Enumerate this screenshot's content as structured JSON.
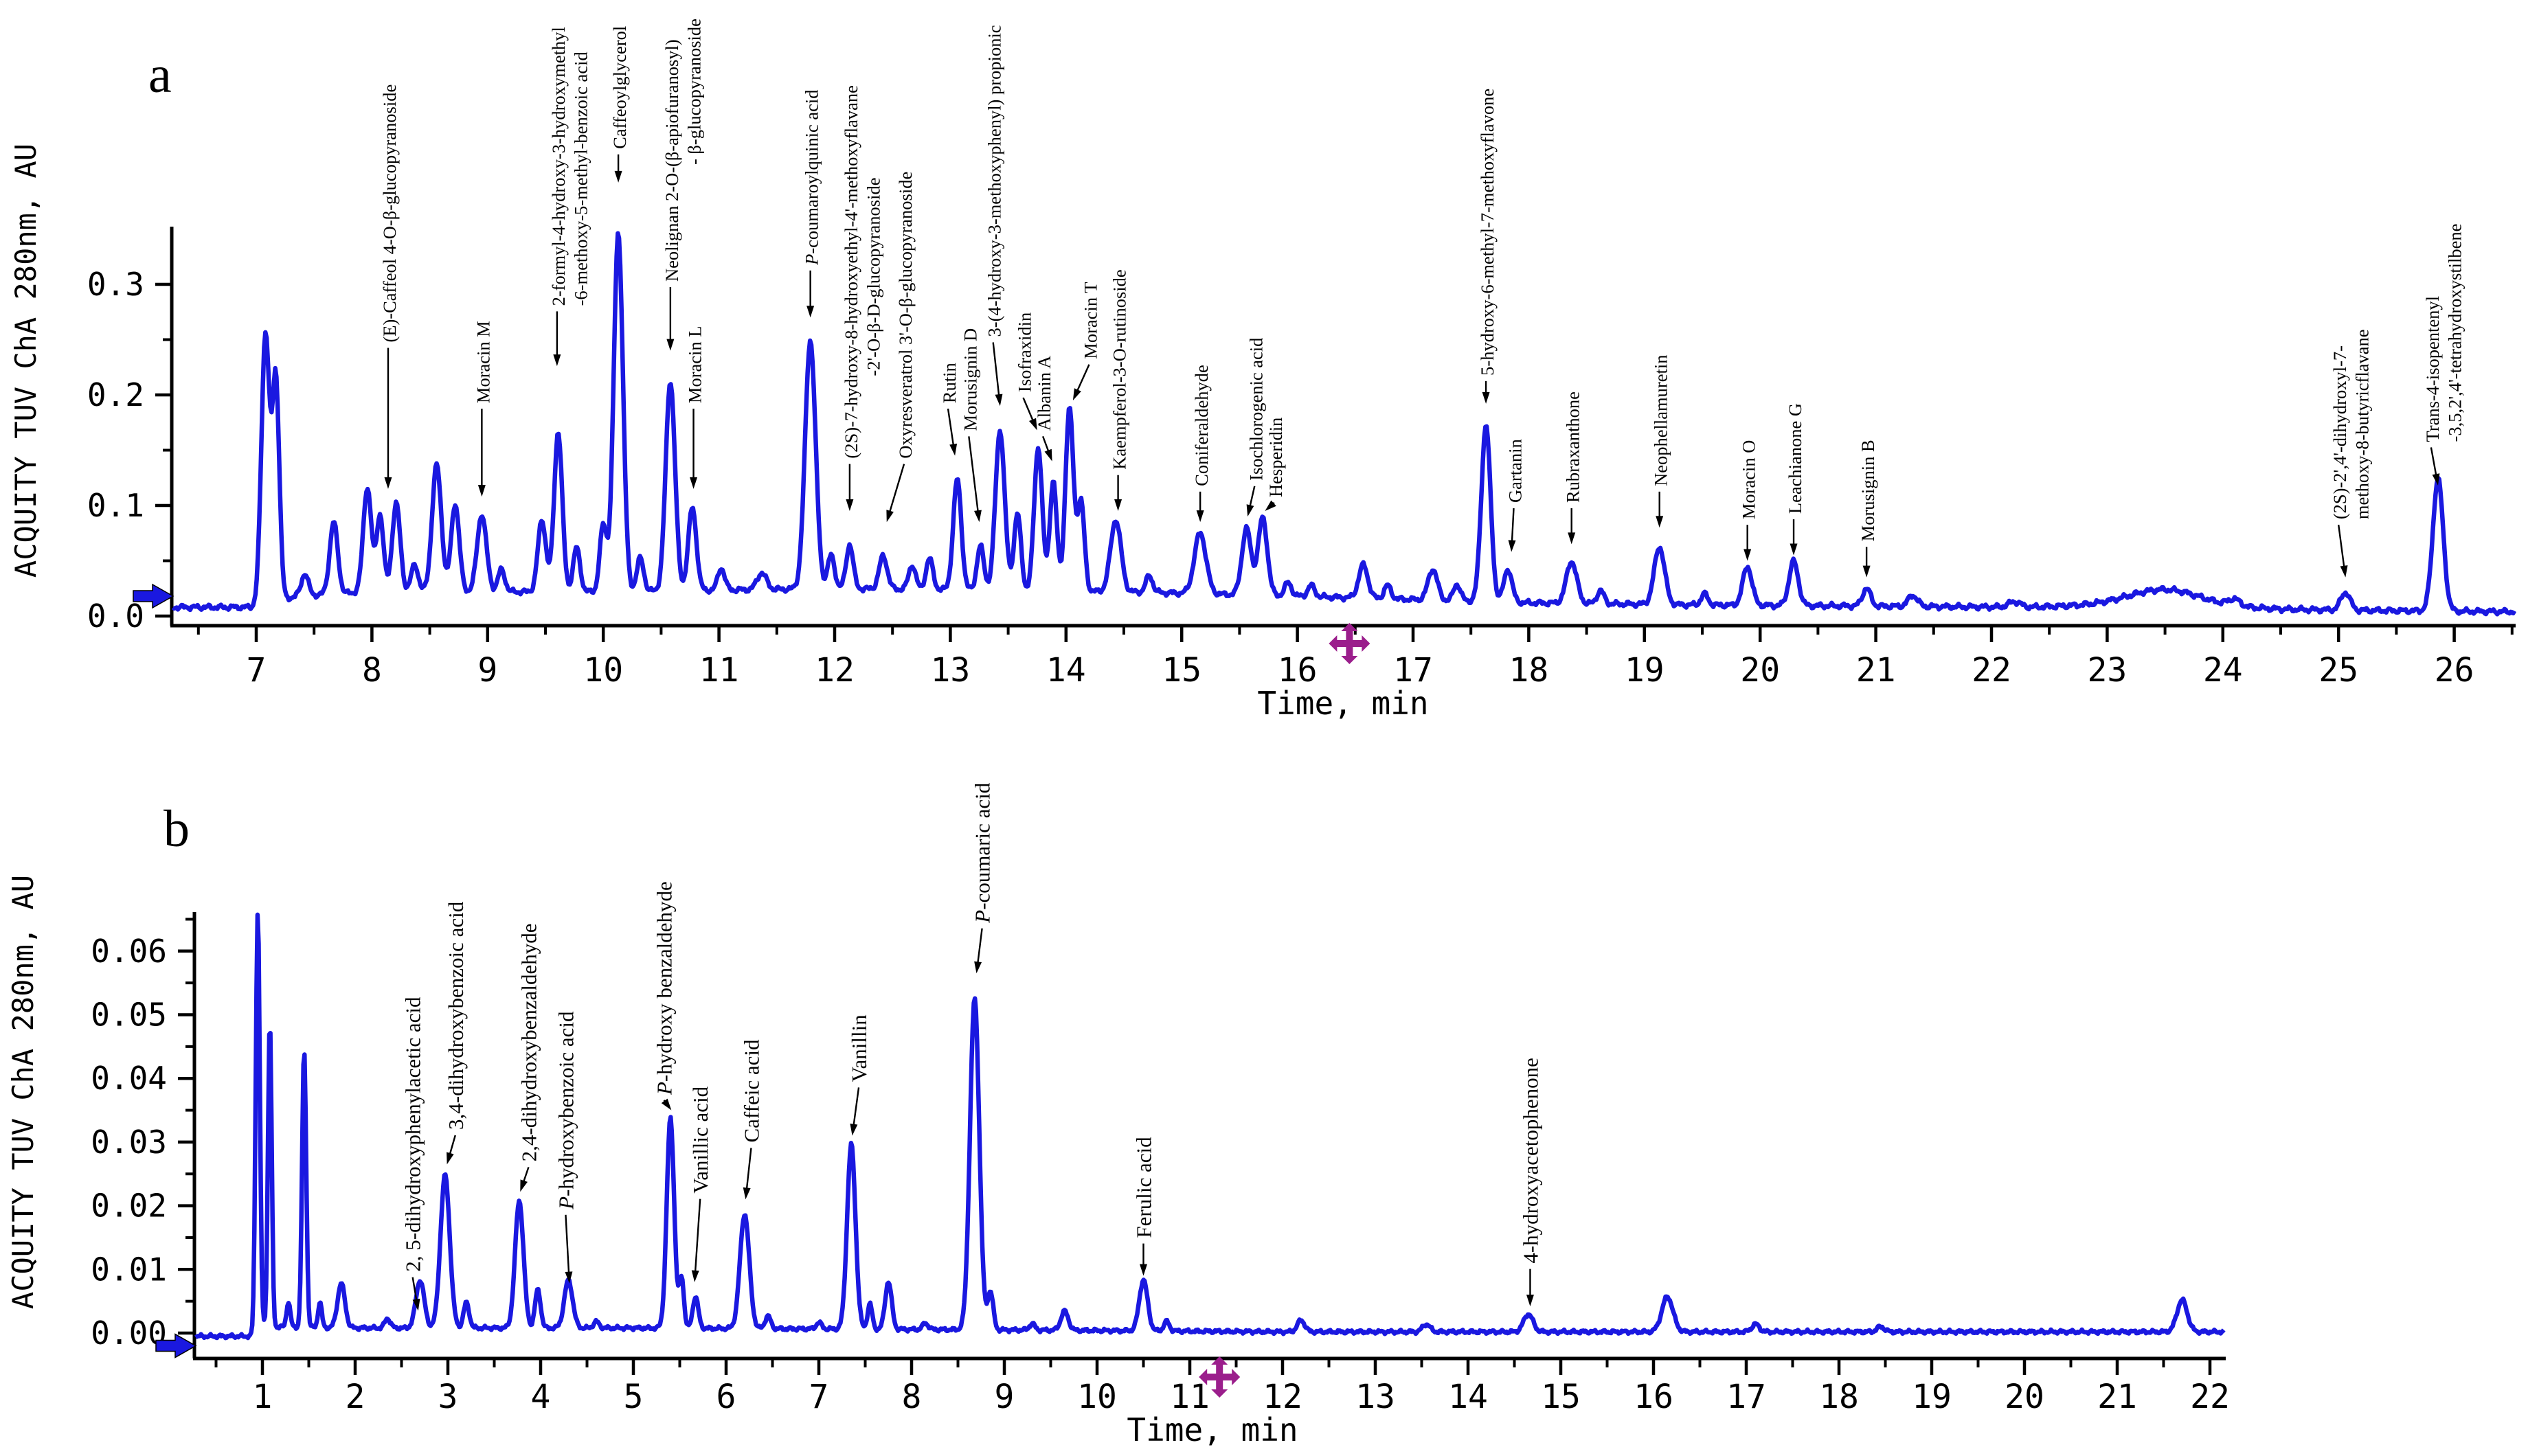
{
  "figure": {
    "panel_a_letter": "a",
    "panel_b_letter": "b",
    "y_axis_title": "ACQUITY TUV ChA 280nm, AU",
    "x_axis_title": "Time, min",
    "trace_color": "#1a18e0",
    "cursor_color": "#9b1e8c",
    "axis_color": "#000000",
    "icons": {
      "cursor": "move-cursor-icon",
      "baseline_marker": "right-arrow-icon"
    }
  },
  "chart_data": [
    {
      "type": "line",
      "panel": "a",
      "title": "",
      "xlabel": "Time, min",
      "ylabel": "ACQUITY TUV ChA 280nm, AU",
      "xlim": [
        6.28,
        26.52
      ],
      "ylim": [
        0,
        0.352
      ],
      "clip_au": 0.349,
      "x_ticks": [
        7,
        8,
        9,
        10,
        11,
        12,
        13,
        14,
        15,
        16,
        17,
        18,
        19,
        20,
        21,
        22,
        23,
        24,
        25,
        26
      ],
      "y_ticks": [
        {
          "v": 0.0,
          "label": "0.0"
        },
        {
          "v": 0.1,
          "label": "0.1"
        },
        {
          "v": 0.2,
          "label": "0.2"
        },
        {
          "v": 0.3,
          "label": "0.3"
        }
      ],
      "y_minor_ticks": [
        0.05,
        0.15,
        0.25
      ],
      "grid": false,
      "legend": null,
      "cursor_time_min": 16.45,
      "baseline_marker_au": 0.018,
      "noise_amp": 0.0028,
      "baseline": [
        [
          6.28,
          0.008
        ],
        [
          6.95,
          0.008
        ],
        [
          7.35,
          0.018
        ],
        [
          8.0,
          0.022
        ],
        [
          10.0,
          0.022
        ],
        [
          12.0,
          0.025
        ],
        [
          14.5,
          0.022
        ],
        [
          16.0,
          0.018
        ],
        [
          17.0,
          0.015
        ],
        [
          18.0,
          0.012
        ],
        [
          19.5,
          0.01
        ],
        [
          21.0,
          0.009
        ],
        [
          22.3,
          0.008
        ],
        [
          23.0,
          0.01
        ],
        [
          24.0,
          0.008
        ],
        [
          24.6,
          0.006
        ],
        [
          25.4,
          0.005
        ],
        [
          26.45,
          0.004
        ]
      ],
      "labeled_peaks": [
        {
          "name": "(E)-Caffeol 4-O-β-glucopyranoside",
          "t": 8.21,
          "h": 0.08,
          "s": 0.035,
          "lt": 8.14,
          "lau": 0.245,
          "tt": 8.14,
          "tau": 0.115
        },
        {
          "name": "Moracin M",
          "t": 8.95,
          "h": 0.07,
          "s": 0.04,
          "lt": 8.95,
          "lau": 0.19,
          "tt": 8.95,
          "tau": 0.108
        },
        {
          "name": "2-formyl-4-hydroxy-3-hydroxymethyl",
          "name2": "-6-methoxy-5-methyl-benzoic acid",
          "dy2": 0,
          "t": 9.61,
          "h": 0.145,
          "s": 0.035,
          "lt": 9.6,
          "lau": 0.278,
          "tt": 9.6,
          "tau": 0.226
        },
        {
          "name": "Caffeoylglycerol",
          "t": 10.13,
          "h": 0.325,
          "s": 0.04,
          "lt": 10.13,
          "lau": 0.42,
          "tt": 10.13,
          "tau": 0.392
        },
        {
          "name": "Neolignan 2-O-(β-apiofuranosyl)",
          "name2": "- β-glucopyranoside",
          "dy2": 170,
          "t": 10.58,
          "h": 0.19,
          "s": 0.04,
          "lt": 10.58,
          "lau": 0.3,
          "tt": 10.58,
          "tau": 0.24
        },
        {
          "name": "Moracin L",
          "t": 10.77,
          "h": 0.075,
          "s": 0.035,
          "lt": 10.78,
          "lau": 0.19,
          "tt": 10.78,
          "tau": 0.115
        },
        {
          "name": "P-coumaroylquinic acid",
          "ip": true,
          "t": 11.79,
          "h": 0.225,
          "s": 0.045,
          "lt": 11.79,
          "lau": 0.315,
          "tt": 11.79,
          "tau": 0.27
        },
        {
          "name": "(2S)-7-hydroxy-8-hydroxyethyl-4'-methoxyflavane",
          "name2": "-2'-O-β-D-glucopyranoside",
          "dy2": 120,
          "t": 12.13,
          "h": 0.04,
          "s": 0.03,
          "lt": 12.13,
          "lau": 0.14,
          "tt": 12.13,
          "tau": 0.095
        },
        {
          "name": "Oxyresveratrol 3'-O-β-glucopyranoside",
          "t": 12.42,
          "h": 0.03,
          "s": 0.035,
          "lt": 12.6,
          "lau": 0.14,
          "tt": 12.45,
          "tau": 0.085
        },
        {
          "name": "Rutin",
          "t": 13.06,
          "h": 0.1,
          "s": 0.035,
          "lt": 12.98,
          "lau": 0.19,
          "tt": 13.04,
          "tau": 0.145
        },
        {
          "name": "Morusignin D",
          "t": 13.26,
          "h": 0.04,
          "s": 0.03,
          "lt": 13.16,
          "lau": 0.165,
          "tt": 13.25,
          "tau": 0.085
        },
        {
          "name": "3-(4-hydroxy-3-methoxyphenyl) propionic",
          "t": 13.43,
          "h": 0.145,
          "s": 0.04,
          "lt": 13.37,
          "lau": 0.25,
          "tt": 13.43,
          "tau": 0.19
        },
        {
          "name": "Isofraxidin",
          "t": 13.76,
          "h": 0.13,
          "s": 0.035,
          "lt": 13.63,
          "lau": 0.2,
          "tt": 13.75,
          "tau": 0.168
        },
        {
          "name": "Albanin A",
          "t": 13.89,
          "h": 0.1,
          "s": 0.03,
          "lt": 13.8,
          "lau": 0.165,
          "tt": 13.88,
          "tau": 0.14
        },
        {
          "name": "Moracin T",
          "t": 14.03,
          "h": 0.165,
          "s": 0.035,
          "lt": 14.2,
          "lau": 0.23,
          "tt": 14.06,
          "tau": 0.195
        },
        {
          "name": "Kaempferol-3-O-rutinoside",
          "t": 14.43,
          "h": 0.065,
          "s": 0.045,
          "lt": 14.45,
          "lau": 0.13,
          "tt": 14.45,
          "tau": 0.095
        },
        {
          "name": "Coniferaldehyde",
          "t": 15.16,
          "h": 0.055,
          "s": 0.05,
          "lt": 15.16,
          "lau": 0.115,
          "tt": 15.16,
          "tau": 0.085
        },
        {
          "name": "Isochlorogenic acid",
          "t": 15.56,
          "h": 0.06,
          "s": 0.04,
          "lt": 15.63,
          "lau": 0.12,
          "tt": 15.57,
          "tau": 0.09
        },
        {
          "name": "Hesperidin",
          "t": 15.7,
          "h": 0.07,
          "s": 0.04,
          "lt": 15.8,
          "lau": 0.105,
          "tt": 15.72,
          "tau": 0.095
        },
        {
          "name": "5-hydroxy-6-methyl-7-methoxyflavone",
          "t": 17.63,
          "h": 0.16,
          "s": 0.04,
          "lt": 17.63,
          "lau": 0.215,
          "tt": 17.63,
          "tau": 0.192
        },
        {
          "name": "Gartanin",
          "t": 17.82,
          "h": 0.03,
          "s": 0.035,
          "lt": 17.87,
          "lau": 0.1,
          "tt": 17.85,
          "tau": 0.058
        },
        {
          "name": "Rubraxanthone",
          "t": 18.37,
          "h": 0.038,
          "s": 0.045,
          "lt": 18.37,
          "lau": 0.1,
          "tt": 18.37,
          "tau": 0.065
        },
        {
          "name": "Neophellamuretin",
          "t": 19.13,
          "h": 0.052,
          "s": 0.045,
          "lt": 19.13,
          "lau": 0.115,
          "tt": 19.13,
          "tau": 0.08
        },
        {
          "name": "Moracin O",
          "t": 19.89,
          "h": 0.035,
          "s": 0.04,
          "lt": 19.89,
          "lau": 0.085,
          "tt": 19.89,
          "tau": 0.05
        },
        {
          "name": "Leachianone G",
          "t": 20.29,
          "h": 0.04,
          "s": 0.04,
          "lt": 20.29,
          "lau": 0.09,
          "tt": 20.29,
          "tau": 0.055
        },
        {
          "name": "Morusignin B",
          "t": 20.92,
          "h": 0.016,
          "s": 0.035,
          "lt": 20.92,
          "lau": 0.065,
          "tt": 20.92,
          "tau": 0.035
        },
        {
          "name": "(2S)-2',4'-dihydroxyl-7-",
          "name2": "methoxy-8-butyricflavane",
          "dy2": 0,
          "t": 25.06,
          "h": 0.016,
          "s": 0.04,
          "lt": 25.0,
          "lau": 0.085,
          "tt": 25.06,
          "tau": 0.035
        },
        {
          "name": "Trans-4-isopentenyl",
          "name2": "-3,5,2',4'-tetrahydroxystilbene",
          "dy2": 0,
          "t": 25.86,
          "h": 0.12,
          "s": 0.045,
          "lt": 25.8,
          "lau": 0.155,
          "tt": 25.86,
          "tau": 0.118
        }
      ],
      "minor_peaks": [
        [
          7.08,
          0.245,
          0.035
        ],
        [
          7.17,
          0.2,
          0.03
        ],
        [
          7.42,
          0.02,
          0.03
        ],
        [
          7.67,
          0.065,
          0.035
        ],
        [
          7.96,
          0.095,
          0.035
        ],
        [
          8.07,
          0.07,
          0.03
        ],
        [
          8.37,
          0.025,
          0.03
        ],
        [
          8.56,
          0.115,
          0.04
        ],
        [
          8.72,
          0.08,
          0.035
        ],
        [
          9.12,
          0.02,
          0.03
        ],
        [
          9.47,
          0.065,
          0.035
        ],
        [
          9.77,
          0.04,
          0.03
        ],
        [
          10.0,
          0.06,
          0.03
        ],
        [
          10.32,
          0.03,
          0.03
        ],
        [
          11.02,
          0.02,
          0.03
        ],
        [
          11.37,
          0.015,
          0.04
        ],
        [
          11.97,
          0.03,
          0.03
        ],
        [
          12.67,
          0.022,
          0.03
        ],
        [
          12.82,
          0.028,
          0.03
        ],
        [
          13.58,
          0.07,
          0.03
        ],
        [
          14.13,
          0.08,
          0.03
        ],
        [
          14.72,
          0.015,
          0.03
        ],
        [
          15.92,
          0.012,
          0.03
        ],
        [
          16.12,
          0.01,
          0.03
        ],
        [
          16.57,
          0.03,
          0.04
        ],
        [
          16.78,
          0.012,
          0.03
        ],
        [
          17.17,
          0.028,
          0.04
        ],
        [
          17.38,
          0.015,
          0.03
        ],
        [
          18.62,
          0.012,
          0.03
        ],
        [
          19.52,
          0.01,
          0.03
        ],
        [
          21.32,
          0.01,
          0.04
        ],
        [
          22.2,
          0.005,
          0.05
        ],
        [
          23.5,
          0.015,
          0.3
        ],
        [
          24.1,
          0.006,
          0.05
        ]
      ]
    },
    {
      "type": "line",
      "panel": "b",
      "title": "",
      "xlabel": "Time, min",
      "ylabel": "ACQUITY TUV ChA 280nm, AU",
      "xlim": [
        0.28,
        22.15
      ],
      "ylim": [
        -0.004,
        0.0662
      ],
      "clip_au": 0.0663,
      "x_ticks": [
        1,
        2,
        3,
        4,
        5,
        6,
        7,
        8,
        9,
        10,
        11,
        12,
        13,
        14,
        15,
        16,
        17,
        18,
        19,
        20,
        21,
        22
      ],
      "y_ticks": [
        {
          "v": 0.0,
          "label": "0.00"
        },
        {
          "v": 0.01,
          "label": "0.01"
        },
        {
          "v": 0.02,
          "label": "0.02"
        },
        {
          "v": 0.03,
          "label": "0.03"
        },
        {
          "v": 0.04,
          "label": "0.04"
        },
        {
          "v": 0.05,
          "label": "0.05"
        },
        {
          "v": 0.06,
          "label": "0.06"
        }
      ],
      "y_minor_ticks": [
        0.005,
        0.015,
        0.025,
        0.035,
        0.045,
        0.055,
        0.065
      ],
      "grid": false,
      "legend": null,
      "cursor_time_min": 11.32,
      "baseline_marker_au": -0.002,
      "noise_amp": 0.00035,
      "baseline": [
        [
          0.28,
          -0.0005
        ],
        [
          0.88,
          -0.0005
        ],
        [
          1.0,
          0.001
        ],
        [
          2.0,
          0.0008
        ],
        [
          5.0,
          0.0008
        ],
        [
          9.0,
          0.0005
        ],
        [
          12.0,
          0.0002
        ],
        [
          22.15,
          0.0002
        ]
      ],
      "labeled_peaks": [
        {
          "name": "2, 5-dihydroxyphenylacetic acid",
          "t": 2.7,
          "h": 0.0075,
          "s": 0.045,
          "lt": 2.62,
          "lau": 0.0092,
          "tt": 2.68,
          "tau": 0.0035
        },
        {
          "name": "3,4-dihydroxybenzoic acid",
          "t": 2.97,
          "h": 0.024,
          "s": 0.05,
          "lt": 3.08,
          "lau": 0.0315,
          "tt": 2.99,
          "tau": 0.0265
        },
        {
          "name": "2,4-dihydroxybenzaldehyde",
          "t": 3.77,
          "h": 0.02,
          "s": 0.045,
          "lt": 3.87,
          "lau": 0.0265,
          "tt": 3.78,
          "tau": 0.0222
        },
        {
          "name": "P-hydroxybenzoic acid",
          "ip": true,
          "t": 4.3,
          "h": 0.0075,
          "s": 0.045,
          "lt": 4.27,
          "lau": 0.019,
          "tt": 4.31,
          "tau": 0.0078
        },
        {
          "name": "P-hydroxy benzaldehyde",
          "ip": true,
          "t": 5.4,
          "h": 0.033,
          "s": 0.04,
          "lt": 5.33,
          "lau": 0.037,
          "tt": 5.41,
          "tau": 0.035
        },
        {
          "name": "Vanillic acid",
          "t": 5.67,
          "h": 0.005,
          "s": 0.03,
          "lt": 5.72,
          "lau": 0.0215,
          "tt": 5.66,
          "tau": 0.008
        },
        {
          "name": "Caffeic acid",
          "t": 6.2,
          "h": 0.018,
          "s": 0.05,
          "lt": 6.27,
          "lau": 0.0295,
          "tt": 6.21,
          "tau": 0.021
        },
        {
          "name": "Vanillin",
          "t": 7.35,
          "h": 0.029,
          "s": 0.045,
          "lt": 7.43,
          "lau": 0.039,
          "tt": 7.36,
          "tau": 0.031
        },
        {
          "name": "P-coumaric acid",
          "ip": true,
          "t": 8.68,
          "h": 0.052,
          "s": 0.05,
          "lt": 8.76,
          "lau": 0.064,
          "tt": 8.7,
          "tau": 0.0565
        },
        {
          "name": "Ferulic acid",
          "t": 10.5,
          "h": 0.008,
          "s": 0.045,
          "lt": 10.5,
          "lau": 0.0145,
          "tt": 10.5,
          "tau": 0.009
        },
        {
          "name": "4-hydroxyacetophenone",
          "t": 14.65,
          "h": 0.0028,
          "s": 0.05,
          "lt": 14.67,
          "lau": 0.0105,
          "tt": 14.67,
          "tau": 0.0042
        }
      ],
      "minor_peaks": [
        [
          0.95,
          0.066,
          0.022
        ],
        [
          1.08,
          0.048,
          0.02
        ],
        [
          1.28,
          0.004,
          0.02
        ],
        [
          1.45,
          0.0435,
          0.022
        ],
        [
          1.62,
          0.004,
          0.02
        ],
        [
          1.85,
          0.007,
          0.04
        ],
        [
          2.35,
          0.0015,
          0.03
        ],
        [
          3.2,
          0.004,
          0.03
        ],
        [
          3.97,
          0.006,
          0.03
        ],
        [
          4.6,
          0.001,
          0.03
        ],
        [
          5.52,
          0.008,
          0.025
        ],
        [
          6.45,
          0.002,
          0.03
        ],
        [
          7.0,
          0.001,
          0.03
        ],
        [
          7.55,
          0.004,
          0.025
        ],
        [
          7.75,
          0.0075,
          0.035
        ],
        [
          8.15,
          0.001,
          0.03
        ],
        [
          8.85,
          0.006,
          0.03
        ],
        [
          9.3,
          0.001,
          0.03
        ],
        [
          9.65,
          0.003,
          0.04
        ],
        [
          10.75,
          0.0015,
          0.03
        ],
        [
          12.2,
          0.0018,
          0.04
        ],
        [
          13.55,
          0.0012,
          0.04
        ],
        [
          16.15,
          0.0055,
          0.06
        ],
        [
          17.1,
          0.0012,
          0.04
        ],
        [
          18.45,
          0.0008,
          0.04
        ],
        [
          21.7,
          0.005,
          0.055
        ]
      ]
    }
  ]
}
